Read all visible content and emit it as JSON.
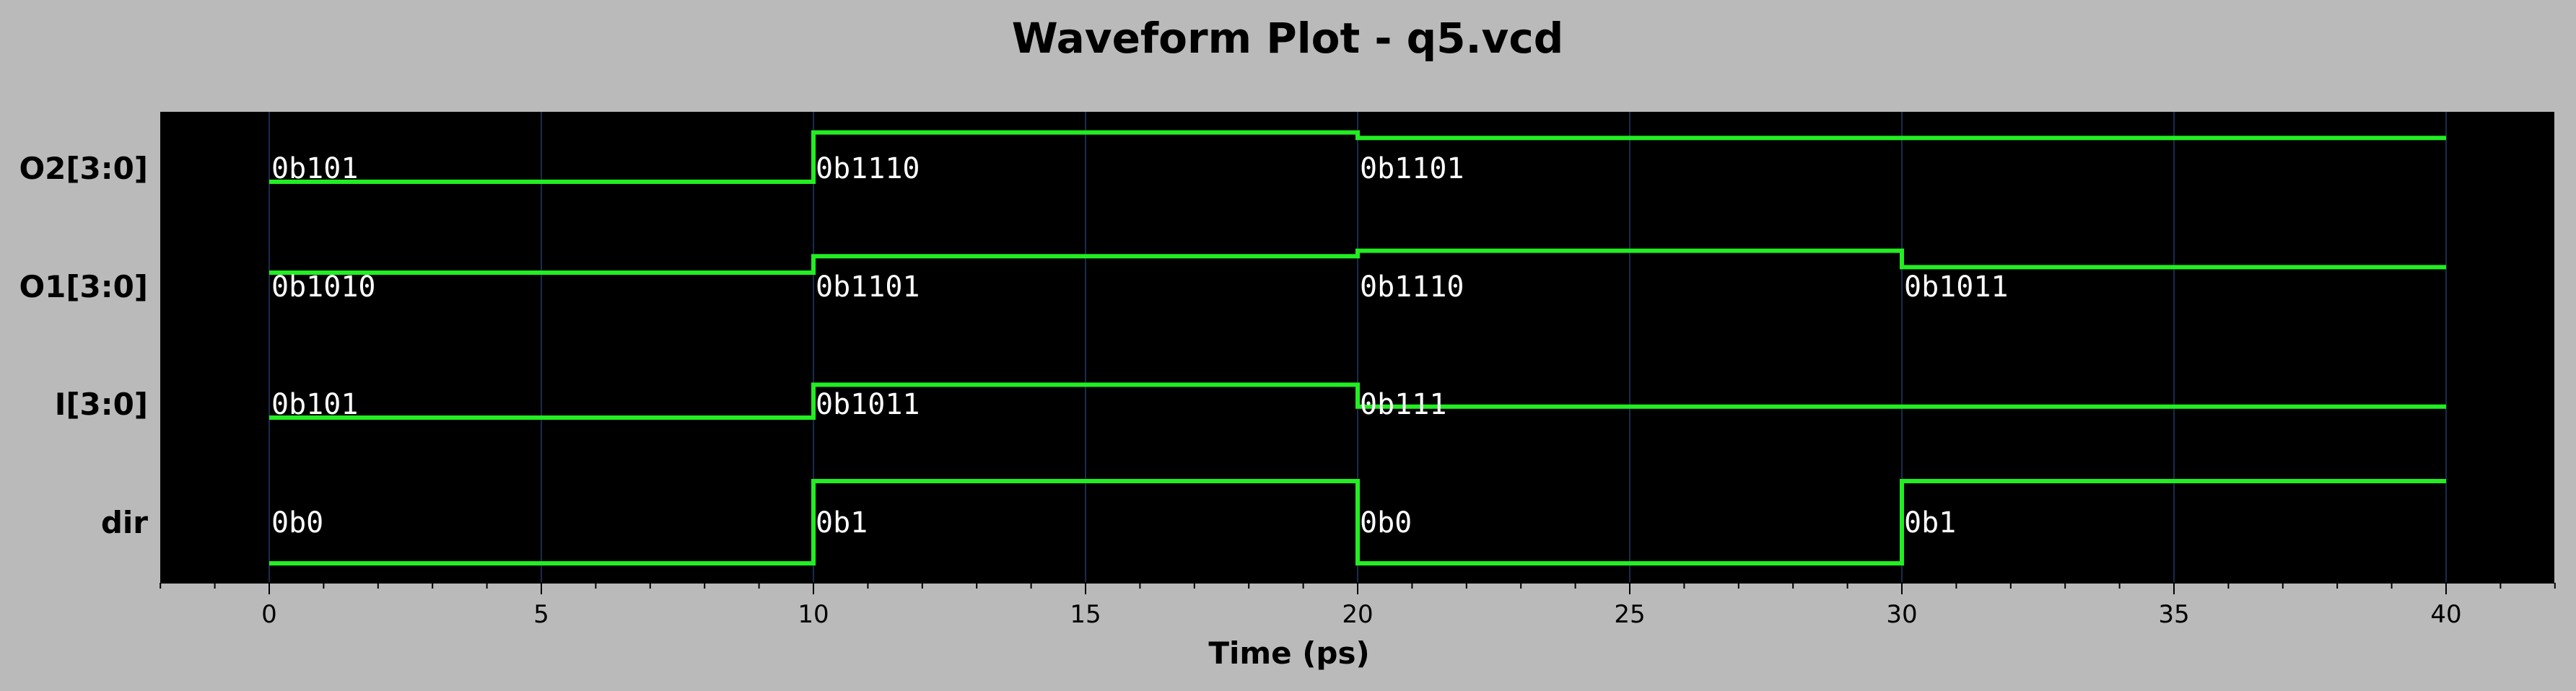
{
  "chart_data": {
    "type": "line",
    "title": "Waveform Plot - q5.vcd",
    "xlabel": "Time (ps)",
    "xlim": [
      -2,
      42
    ],
    "xticks": [
      0,
      5,
      10,
      15,
      20,
      25,
      30,
      35,
      40
    ],
    "xtick_labels": [
      "0",
      "5",
      "10",
      "15",
      "20",
      "25",
      "30",
      "35",
      "40"
    ],
    "grid": true,
    "background_color": "#000000",
    "wave_color": "#22ee22",
    "grid_color": "#1a2a50",
    "end_time": 40,
    "signals": [
      {
        "name": "O2[3:0]",
        "bits": 4,
        "changes": [
          {
            "t": 0,
            "value": 5,
            "label": "0b101"
          },
          {
            "t": 10,
            "value": 14,
            "label": "0b1110"
          },
          {
            "t": 20,
            "value": 13,
            "label": "0b1101"
          }
        ]
      },
      {
        "name": "O1[3:0]",
        "bits": 4,
        "changes": [
          {
            "t": 0,
            "value": 10,
            "label": "0b1010"
          },
          {
            "t": 10,
            "value": 13,
            "label": "0b1101"
          },
          {
            "t": 20,
            "value": 14,
            "label": "0b1110"
          },
          {
            "t": 30,
            "value": 11,
            "label": "0b1011"
          }
        ]
      },
      {
        "name": "I[3:0]",
        "bits": 4,
        "changes": [
          {
            "t": 0,
            "value": 5,
            "label": "0b101"
          },
          {
            "t": 10,
            "value": 11,
            "label": "0b1011"
          },
          {
            "t": 20,
            "value": 7,
            "label": "0b111"
          }
        ]
      },
      {
        "name": "dir",
        "bits": 1,
        "changes": [
          {
            "t": 0,
            "value": 0,
            "label": "0b0"
          },
          {
            "t": 10,
            "value": 1,
            "label": "0b1"
          },
          {
            "t": 20,
            "value": 0,
            "label": "0b0"
          },
          {
            "t": 30,
            "value": 1,
            "label": "0b1"
          }
        ]
      }
    ]
  }
}
